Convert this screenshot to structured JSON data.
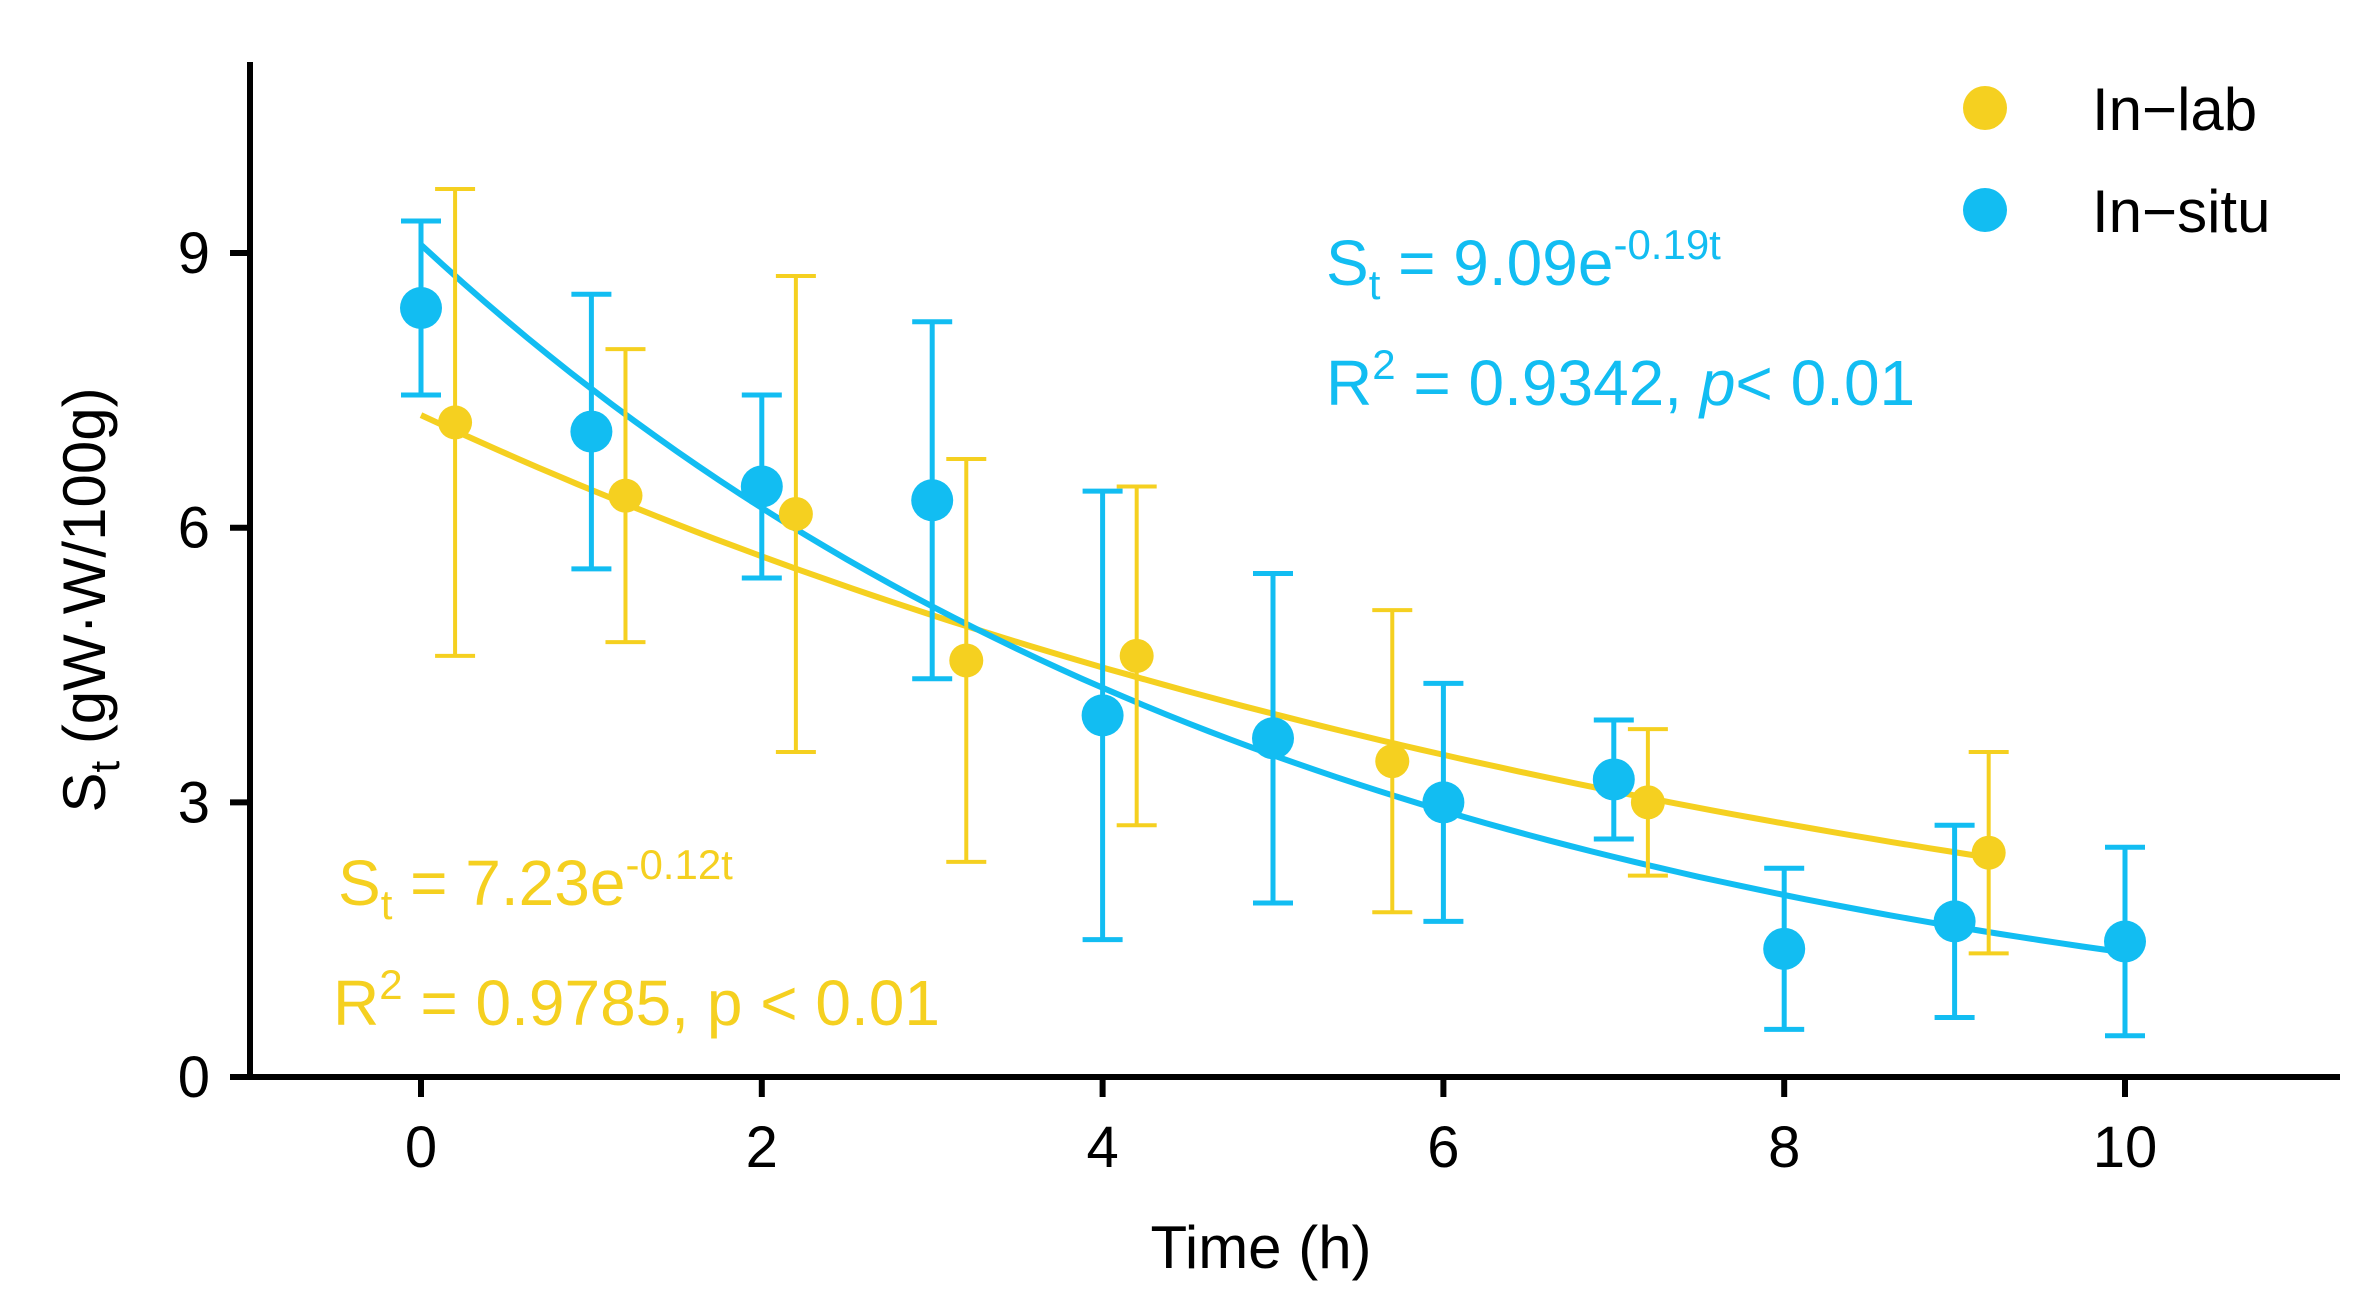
{
  "chart_data": {
    "type": "scatter",
    "xlabel": "Time (h)",
    "ylabel": {
      "main": "S",
      "sub": "t",
      "unit": " (gW·W/100g)"
    },
    "xlim": [
      -1,
      11.2
    ],
    "ylim": [
      0,
      11
    ],
    "xticks": [
      0,
      2,
      4,
      6,
      8,
      10
    ],
    "yticks": [
      0,
      3,
      6,
      9
    ],
    "legend_position": "top-right",
    "series": [
      {
        "name": "In−lab",
        "color": "#F5D020",
        "x": [
          0.2,
          1.2,
          2.2,
          3.2,
          4.2,
          5.7,
          7.2,
          9.2
        ],
        "y": [
          7.15,
          6.35,
          6.15,
          4.55,
          4.6,
          3.45,
          3.0,
          2.45
        ],
        "error": [
          2.55,
          1.6,
          2.6,
          2.2,
          1.85,
          1.65,
          0.8,
          1.1
        ],
        "fit": {
          "a": 7.23,
          "b": -0.12,
          "from": 0,
          "to": 9.2
        },
        "equation": {
          "lhs": "S",
          "sub": "t",
          "rhs": " = 7.23e",
          "exp": "-0.12t"
        },
        "stats": {
          "r": "R",
          "sup": "2",
          "text": " = 0.9785, p < 0.01"
        }
      },
      {
        "name": "In−situ",
        "color": "#12BDF2",
        "x": [
          0,
          1,
          2,
          3,
          4,
          5,
          6,
          7,
          8,
          9,
          10
        ],
        "y": [
          8.4,
          7.05,
          6.45,
          6.3,
          3.95,
          3.7,
          3.0,
          3.25,
          1.4,
          1.7,
          1.48
        ],
        "error": [
          0.95,
          1.5,
          1.0,
          1.95,
          2.45,
          1.8,
          1.3,
          0.65,
          0.88,
          1.05,
          1.03
        ],
        "fit": {
          "a": 9.09,
          "b": -0.19,
          "from": 0,
          "to": 10
        },
        "equation": {
          "lhs": "S",
          "sub": "t",
          "rhs": " = 9.09e",
          "exp": "-0.19t"
        },
        "stats": {
          "r": "R",
          "sup": "2",
          "text": " = 0.9342,  ",
          "p": "p",
          "tail": "< 0.01"
        }
      }
    ]
  }
}
